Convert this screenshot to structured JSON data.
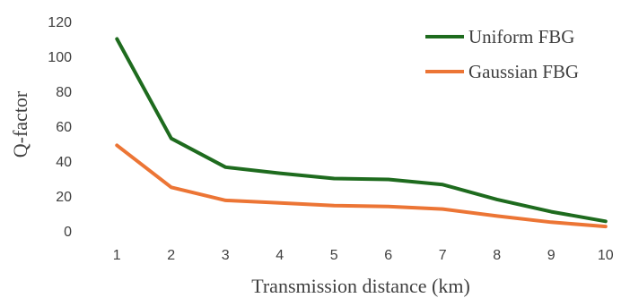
{
  "chart_data": {
    "type": "line",
    "title": "",
    "xlabel": "Transmission distance (km)",
    "ylabel": "Q-factor",
    "x": [
      1,
      2,
      3,
      4,
      5,
      6,
      7,
      8,
      9,
      10
    ],
    "ylim": [
      0,
      120
    ],
    "yticks": [
      0,
      20,
      40,
      60,
      80,
      100,
      120
    ],
    "grid": false,
    "legend_position": "top-right",
    "series": [
      {
        "name": "Uniform FBG",
        "color": "#1e6b1e",
        "values": [
          110,
          53,
          36.5,
          33,
          30,
          29.5,
          26.5,
          18,
          11,
          5.5
        ]
      },
      {
        "name": "Gaussian FBG",
        "color": "#ec7535",
        "values": [
          49,
          25,
          17.5,
          16,
          14.5,
          14,
          12.5,
          8.5,
          5,
          2.5
        ]
      }
    ]
  }
}
